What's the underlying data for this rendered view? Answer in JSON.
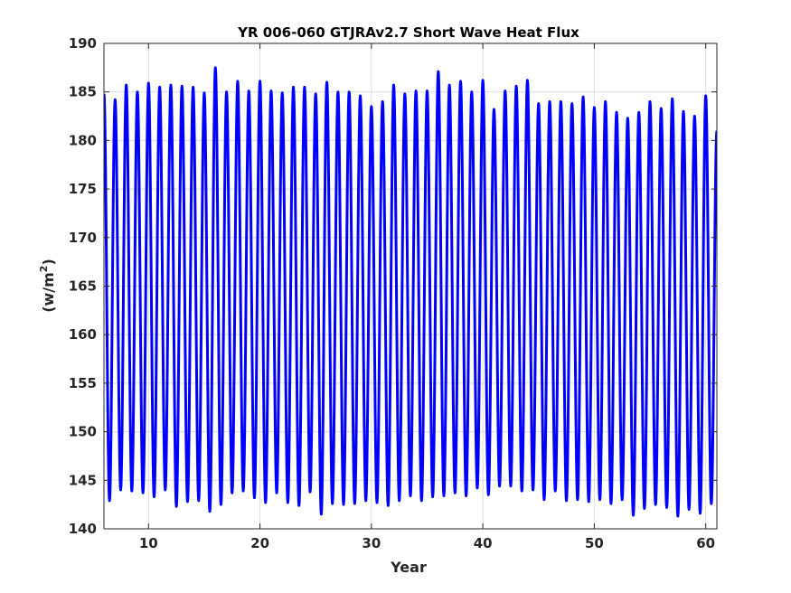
{
  "chart_data": {
    "type": "line",
    "title": "YR 006-060 GTJRAv2.7 Short Wave Heat Flux",
    "xlabel": "Year",
    "ylabel": "(w/m",
    "ylabel_sup": "2",
    "ylabel_close": ")",
    "xlim": [
      6,
      61
    ],
    "ylim": [
      140,
      190
    ],
    "xticks": [
      10,
      20,
      30,
      40,
      50,
      60
    ],
    "yticks": [
      140,
      145,
      150,
      155,
      160,
      165,
      170,
      175,
      180,
      185,
      190
    ],
    "grid": true,
    "line_color": "#0000ff",
    "series": [
      {
        "x": [
          6,
          7,
          8,
          9,
          10,
          11,
          12,
          13,
          14,
          15,
          16,
          17,
          18,
          19,
          20,
          21,
          22,
          23,
          24,
          25,
          26,
          27,
          28,
          29,
          30,
          31,
          32,
          33,
          34,
          35,
          36,
          37,
          38,
          39,
          40,
          41,
          42,
          43,
          44,
          45,
          46,
          47,
          48,
          49,
          50,
          51,
          52,
          53,
          54,
          55,
          56,
          57,
          58,
          59,
          60
        ],
        "max": [
          184.8,
          184.2,
          185.7,
          185.0,
          185.9,
          185.5,
          185.7,
          185.6,
          185.5,
          184.9,
          187.5,
          185.0,
          186.1,
          185.1,
          186.1,
          185.1,
          184.9,
          185.5,
          185.5,
          184.8,
          186.0,
          185.0,
          185.0,
          184.6,
          183.5,
          184.0,
          185.7,
          184.8,
          185.1,
          185.1,
          187.1,
          185.7,
          186.1,
          185.0,
          186.2,
          183.2,
          185.1,
          185.6,
          186.2,
          183.8,
          184.0,
          184.0,
          183.8,
          184.5,
          183.4,
          184.0,
          182.9,
          182.3,
          182.9,
          184.0,
          183.3,
          184.3,
          183.0,
          182.5,
          184.6
        ],
        "min": [
          142.9,
          144.0,
          143.9,
          143.7,
          143.3,
          144.0,
          142.3,
          142.8,
          142.9,
          141.8,
          142.5,
          143.7,
          143.9,
          143.2,
          142.7,
          143.7,
          142.7,
          142.4,
          143.8,
          141.5,
          142.6,
          142.5,
          142.6,
          142.9,
          142.7,
          142.4,
          142.9,
          143.4,
          142.9,
          143.3,
          143.4,
          143.7,
          143.4,
          144.2,
          143.5,
          144.4,
          144.4,
          143.9,
          144.0,
          143.0,
          143.9,
          142.9,
          143.0,
          142.8,
          143.0,
          142.6,
          143.0,
          141.4,
          142.1,
          142.5,
          142.2,
          141.3,
          142.0,
          141.6,
          142.6
        ],
        "end": [
          61,
          181.0
        ]
      }
    ]
  }
}
